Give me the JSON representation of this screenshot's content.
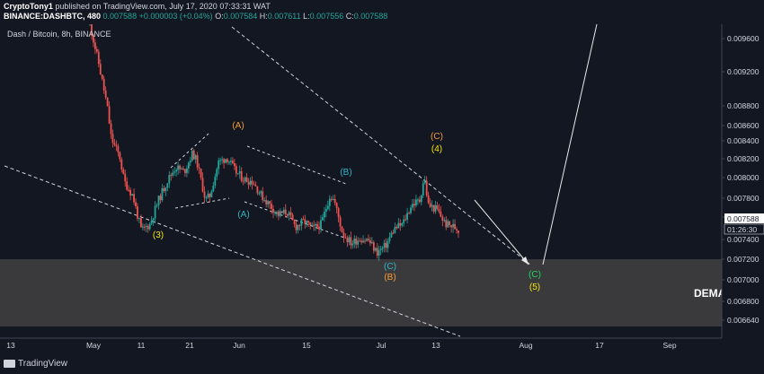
{
  "header": {
    "author": "CryptoTony1",
    "published": "published on TradingView.com, July 17, 2020 07:33:31 WAT",
    "symbol_line": "BINANCE:DASHBTC, 480",
    "last": "0.007588",
    "change": "+0.000003 (+0.04%)",
    "o_label": "O:",
    "o": "0.007584",
    "h_label": "H:",
    "h": "0.007611",
    "l_label": "L:",
    "l": "0.007556",
    "c_label": "C:",
    "c": "0.007588"
  },
  "footer": {
    "brand": "TradingView"
  },
  "colors": {
    "up": "#26a69a",
    "down": "#ef5350",
    "background": "#131722",
    "demand_zone": "#3a3a3d",
    "orange": "#f79c37",
    "yellow": "#f5e50a",
    "cyan": "#2fb8c6",
    "green": "#1ed760",
    "white": "#ffffff"
  },
  "chart_data": {
    "type": "candlestick",
    "title": "Dash / Bitcoin, 8h, BINANCE",
    "timeframe": "8h",
    "y_ticks": [
      "0.009600",
      "0.009200",
      "0.008800",
      "0.008600",
      "0.008400",
      "0.008200",
      "0.008000",
      "0.007800",
      "0.007600",
      "0.007400",
      "0.007200",
      "0.007000",
      "0.006800",
      "0.006640"
    ],
    "x_ticks": [
      "13",
      "May",
      "11",
      "21",
      "Jun",
      "15",
      "Jul",
      "13",
      "Aug",
      "17",
      "Sep"
    ],
    "last_price_label": "0.007588",
    "countdown_label": "01:26:30",
    "zone_label": "DEMA",
    "anchor_path": [
      [
        0,
        0.00975
      ],
      [
        2,
        0.00935
      ],
      [
        4,
        0.0089
      ],
      [
        5,
        0.00855
      ],
      [
        7,
        0.00835
      ],
      [
        8,
        0.0081
      ],
      [
        10,
        0.00795
      ],
      [
        12,
        0.00758
      ],
      [
        14,
        0.00765
      ],
      [
        16,
        0.0079
      ],
      [
        18,
        0.0081
      ],
      [
        20,
        0.00825
      ],
      [
        22,
        0.0082
      ],
      [
        24,
        0.0084
      ],
      [
        25,
        0.0083
      ],
      [
        27,
        0.0079
      ],
      [
        28,
        0.00795
      ],
      [
        30,
        0.0083
      ],
      [
        32,
        0.00835
      ],
      [
        34,
        0.0082
      ],
      [
        36,
        0.00812
      ],
      [
        38,
        0.0081
      ],
      [
        40,
        0.00795
      ],
      [
        42,
        0.00785
      ],
      [
        44,
        0.00775
      ],
      [
        46,
        0.00778
      ],
      [
        48,
        0.00762
      ],
      [
        50,
        0.00768
      ],
      [
        52,
        0.0076
      ],
      [
        54,
        0.00765
      ],
      [
        56,
        0.00795
      ],
      [
        57,
        0.0079
      ],
      [
        59,
        0.00755
      ],
      [
        61,
        0.00745
      ],
      [
        63,
        0.0075
      ],
      [
        65,
        0.00748
      ],
      [
        67,
        0.00735
      ],
      [
        69,
        0.00742
      ],
      [
        71,
        0.0076
      ],
      [
        73,
        0.00765
      ],
      [
        75,
        0.00785
      ],
      [
        77,
        0.0079
      ],
      [
        78,
        0.00815
      ],
      [
        79,
        0.00785
      ],
      [
        81,
        0.0078
      ],
      [
        83,
        0.00765
      ],
      [
        85,
        0.00762
      ],
      [
        86,
        0.007588
      ]
    ],
    "wave_labels": [
      {
        "text": "(3)",
        "color": "yellow"
      },
      {
        "text": "(A)",
        "color": "orange"
      },
      {
        "text": "(A)",
        "color": "cyan"
      },
      {
        "text": "(B)",
        "color": "cyan"
      },
      {
        "text": "(C)",
        "color": "orange"
      },
      {
        "text": "(4)",
        "color": "yellow"
      },
      {
        "text": "(C)",
        "color": "cyan"
      },
      {
        "text": "(B)",
        "color": "orange"
      },
      {
        "text": "(C)",
        "color": "green"
      },
      {
        "text": "(5)",
        "color": "yellow"
      }
    ]
  }
}
